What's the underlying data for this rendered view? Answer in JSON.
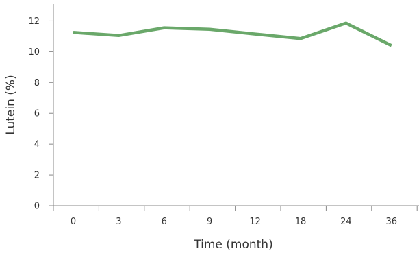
{
  "chart_data": {
    "type": "line",
    "title": "",
    "xlabel": "Time (month)",
    "ylabel": "Lutein (%)",
    "categories": [
      "0",
      "3",
      "6",
      "9",
      "12",
      "18",
      "24",
      "36"
    ],
    "series": [
      {
        "values": [
          11.25,
          11.05,
          11.55,
          11.45,
          11.15,
          10.85,
          11.85,
          10.4
        ],
        "color": "#6aa86a"
      }
    ],
    "ylim": [
      0,
      13
    ],
    "yticks": [
      0,
      2,
      4,
      6,
      8,
      10,
      12
    ],
    "grid": false,
    "legend": "none"
  }
}
